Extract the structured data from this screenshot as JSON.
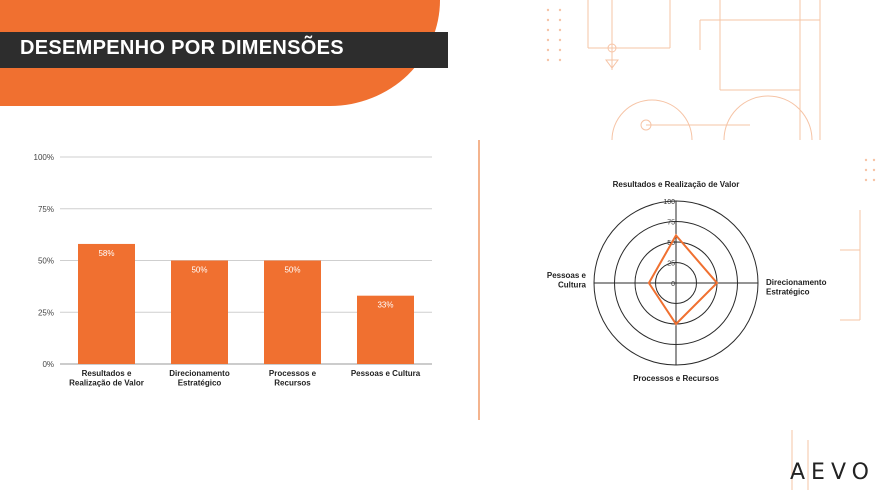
{
  "header": {
    "title": "DESEMPENHO POR DIMENSÕES"
  },
  "brand": {
    "logo": "AEVO",
    "accent": "#f07030",
    "dark": "#2d2d2d"
  },
  "chart_data": [
    {
      "type": "bar",
      "categories": [
        [
          "Resultados e",
          "Realização de Valor"
        ],
        [
          "Direcionamento",
          "Estratégico"
        ],
        [
          "Processos e",
          "Recursos"
        ],
        [
          "Pessoas e Cultura"
        ]
      ],
      "values": [
        58,
        50,
        50,
        33
      ],
      "value_labels": [
        "58%",
        "50%",
        "50%",
        "33%"
      ],
      "yticks": [
        "0%",
        "25%",
        "50%",
        "75%",
        "100%"
      ],
      "ylim": [
        0,
        100
      ],
      "color": "#f07030",
      "grid": true
    },
    {
      "type": "radar",
      "axes": [
        [
          "Resultados e Realização de Valor"
        ],
        [
          "Direcionamento",
          "Estratégico"
        ],
        [
          "Processos e Recursos"
        ],
        [
          "Pessoas e",
          "Cultura"
        ]
      ],
      "values": [
        58,
        50,
        50,
        33
      ],
      "rticks": [
        "0",
        "25",
        "50",
        "75",
        "100"
      ],
      "rlim": [
        0,
        100
      ],
      "color": "#f07030"
    }
  ]
}
